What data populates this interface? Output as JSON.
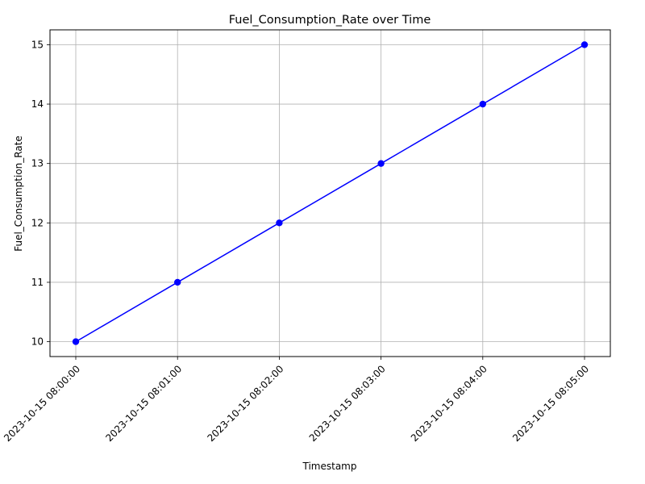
{
  "chart_data": {
    "type": "line",
    "title": "Fuel_Consumption_Rate over Time",
    "xlabel": "Timestamp",
    "ylabel": "Fuel_Consumption_Rate",
    "x": [
      "2023-10-15 08:00:00",
      "2023-10-15 08:01:00",
      "2023-10-15 08:02:00",
      "2023-10-15 08:03:00",
      "2023-10-15 08:04:00",
      "2023-10-15 08:05:00"
    ],
    "series": [
      {
        "values": [
          10,
          11,
          12,
          13,
          14,
          15
        ],
        "color": "#0000ff",
        "marker": "circle"
      }
    ],
    "yticks": [
      "10",
      "11",
      "12",
      "13",
      "14",
      "15"
    ],
    "ylim": [
      9.75,
      15.25
    ],
    "grid": true,
    "legend": "none"
  }
}
